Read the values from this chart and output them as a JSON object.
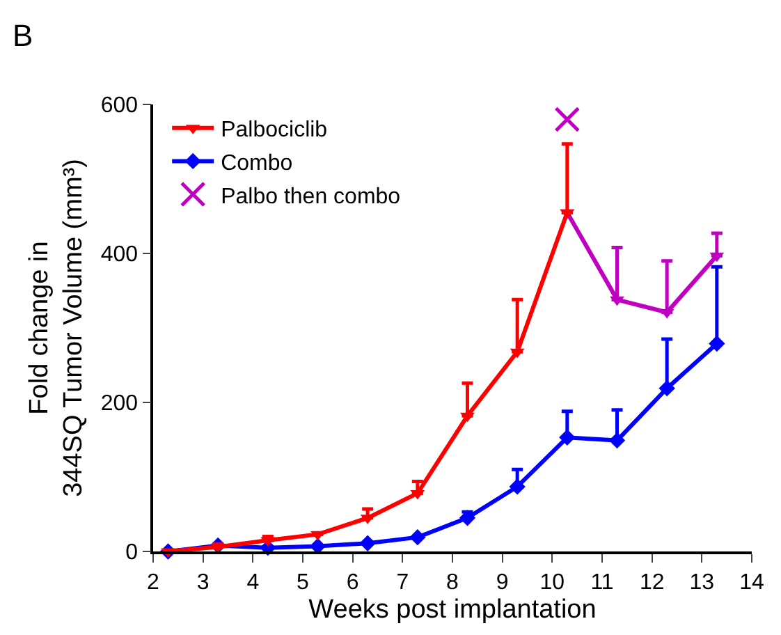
{
  "chart_data": {
    "type": "line",
    "title": "B",
    "xlabel": "Weeks post implantation",
    "ylabel": "Fold change in\n344SQ Tumor Volume (mm³)",
    "xlim": [
      2,
      14
    ],
    "xticks": [
      2,
      3,
      4,
      5,
      6,
      7,
      8,
      9,
      10,
      11,
      12,
      13,
      14
    ],
    "ylim": [
      0,
      600
    ],
    "yticks": [
      0,
      200,
      400,
      600
    ],
    "legend": "top left",
    "series": [
      {
        "name": "Palbociclib",
        "color": "#ff0000",
        "marker": "triangle",
        "x": [
          2.3,
          3.3,
          4.3,
          5.3,
          6.3,
          7.3,
          8.3,
          9.3,
          10.3
        ],
        "values": [
          0,
          6,
          15,
          23,
          45,
          78,
          182,
          268,
          455
        ],
        "errors": [
          null,
          [
            6,
            10
          ],
          [
            15,
            20
          ],
          [
            23,
            25
          ],
          [
            45,
            57
          ],
          [
            78,
            94
          ],
          [
            182,
            226
          ],
          [
            268,
            338
          ],
          [
            455,
            547
          ]
        ]
      },
      {
        "name": "Combo",
        "color": "#0000ff",
        "marker": "diamond",
        "x": [
          2.3,
          3.3,
          4.3,
          5.3,
          6.3,
          7.3,
          8.3,
          9.3,
          10.3,
          11.3,
          12.3,
          13.3
        ],
        "values": [
          0,
          8,
          5,
          7,
          11,
          19,
          45,
          87,
          153,
          149,
          219,
          279
        ],
        "errors": [
          null,
          null,
          null,
          null,
          null,
          null,
          [
            45,
            53
          ],
          [
            87,
            110
          ],
          [
            153,
            188
          ],
          [
            149,
            190
          ],
          [
            219,
            285
          ],
          [
            279,
            382
          ]
        ]
      },
      {
        "color": "#c000c0",
        "marker": "triangle",
        "x": [
          10.3,
          11.3,
          12.3,
          13.3
        ],
        "values": [
          455,
          338,
          321,
          397
        ],
        "errors": [
          null,
          [
            338,
            408
          ],
          [
            321,
            390
          ],
          [
            397,
            427
          ]
        ]
      },
      {
        "name": "Palbo then combo",
        "type": "scatter",
        "color": "#c000c0",
        "marker": "cross",
        "x": [
          10.3
        ],
        "values": [
          580
        ]
      }
    ]
  }
}
